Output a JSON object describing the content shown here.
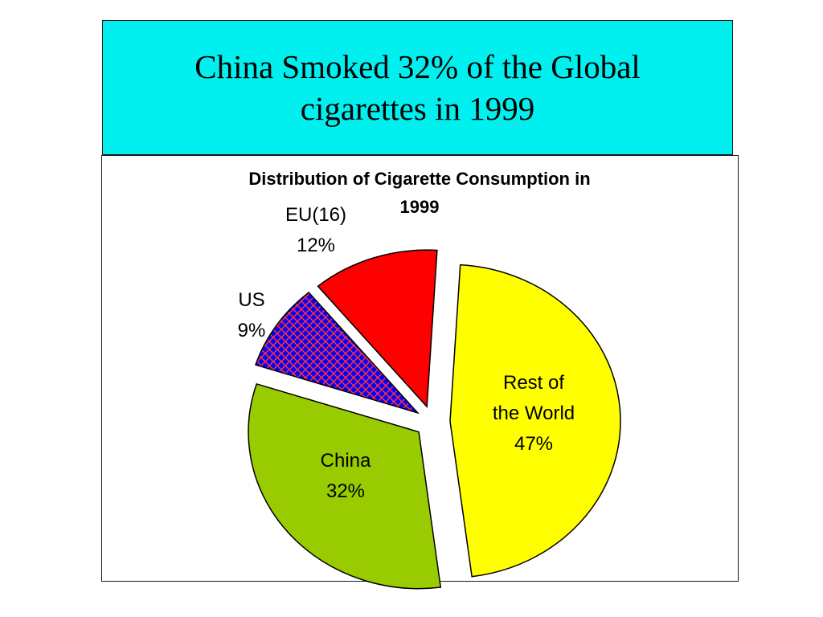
{
  "slide": {
    "title_line1": "China Smoked 32% of the Global",
    "title_line2": "cigarettes in 1999"
  },
  "chart_data": {
    "type": "pie",
    "title_line1": "Distribution of Cigarette Consumption in",
    "title_line2": "1999",
    "exploded": true,
    "slices": [
      {
        "name": "Rest of the World",
        "label_lines": [
          "Rest of",
          "the World"
        ],
        "pct_label": "47%",
        "value": 47,
        "color": "#ffff00",
        "pattern": "none"
      },
      {
        "name": "China",
        "label_lines": [
          "China"
        ],
        "pct_label": "32%",
        "value": 32,
        "color": "#99cc00",
        "pattern": "none"
      },
      {
        "name": "US",
        "label_lines": [
          "US"
        ],
        "pct_label": "9%",
        "value": 9,
        "color": "#0000ff",
        "pattern": "red-crosshatch"
      },
      {
        "name": "EU(16)",
        "label_lines": [
          "EU(16)"
        ],
        "pct_label": "12%",
        "value": 12,
        "color": "#ff0000",
        "pattern": "none"
      }
    ],
    "legend": "none"
  }
}
